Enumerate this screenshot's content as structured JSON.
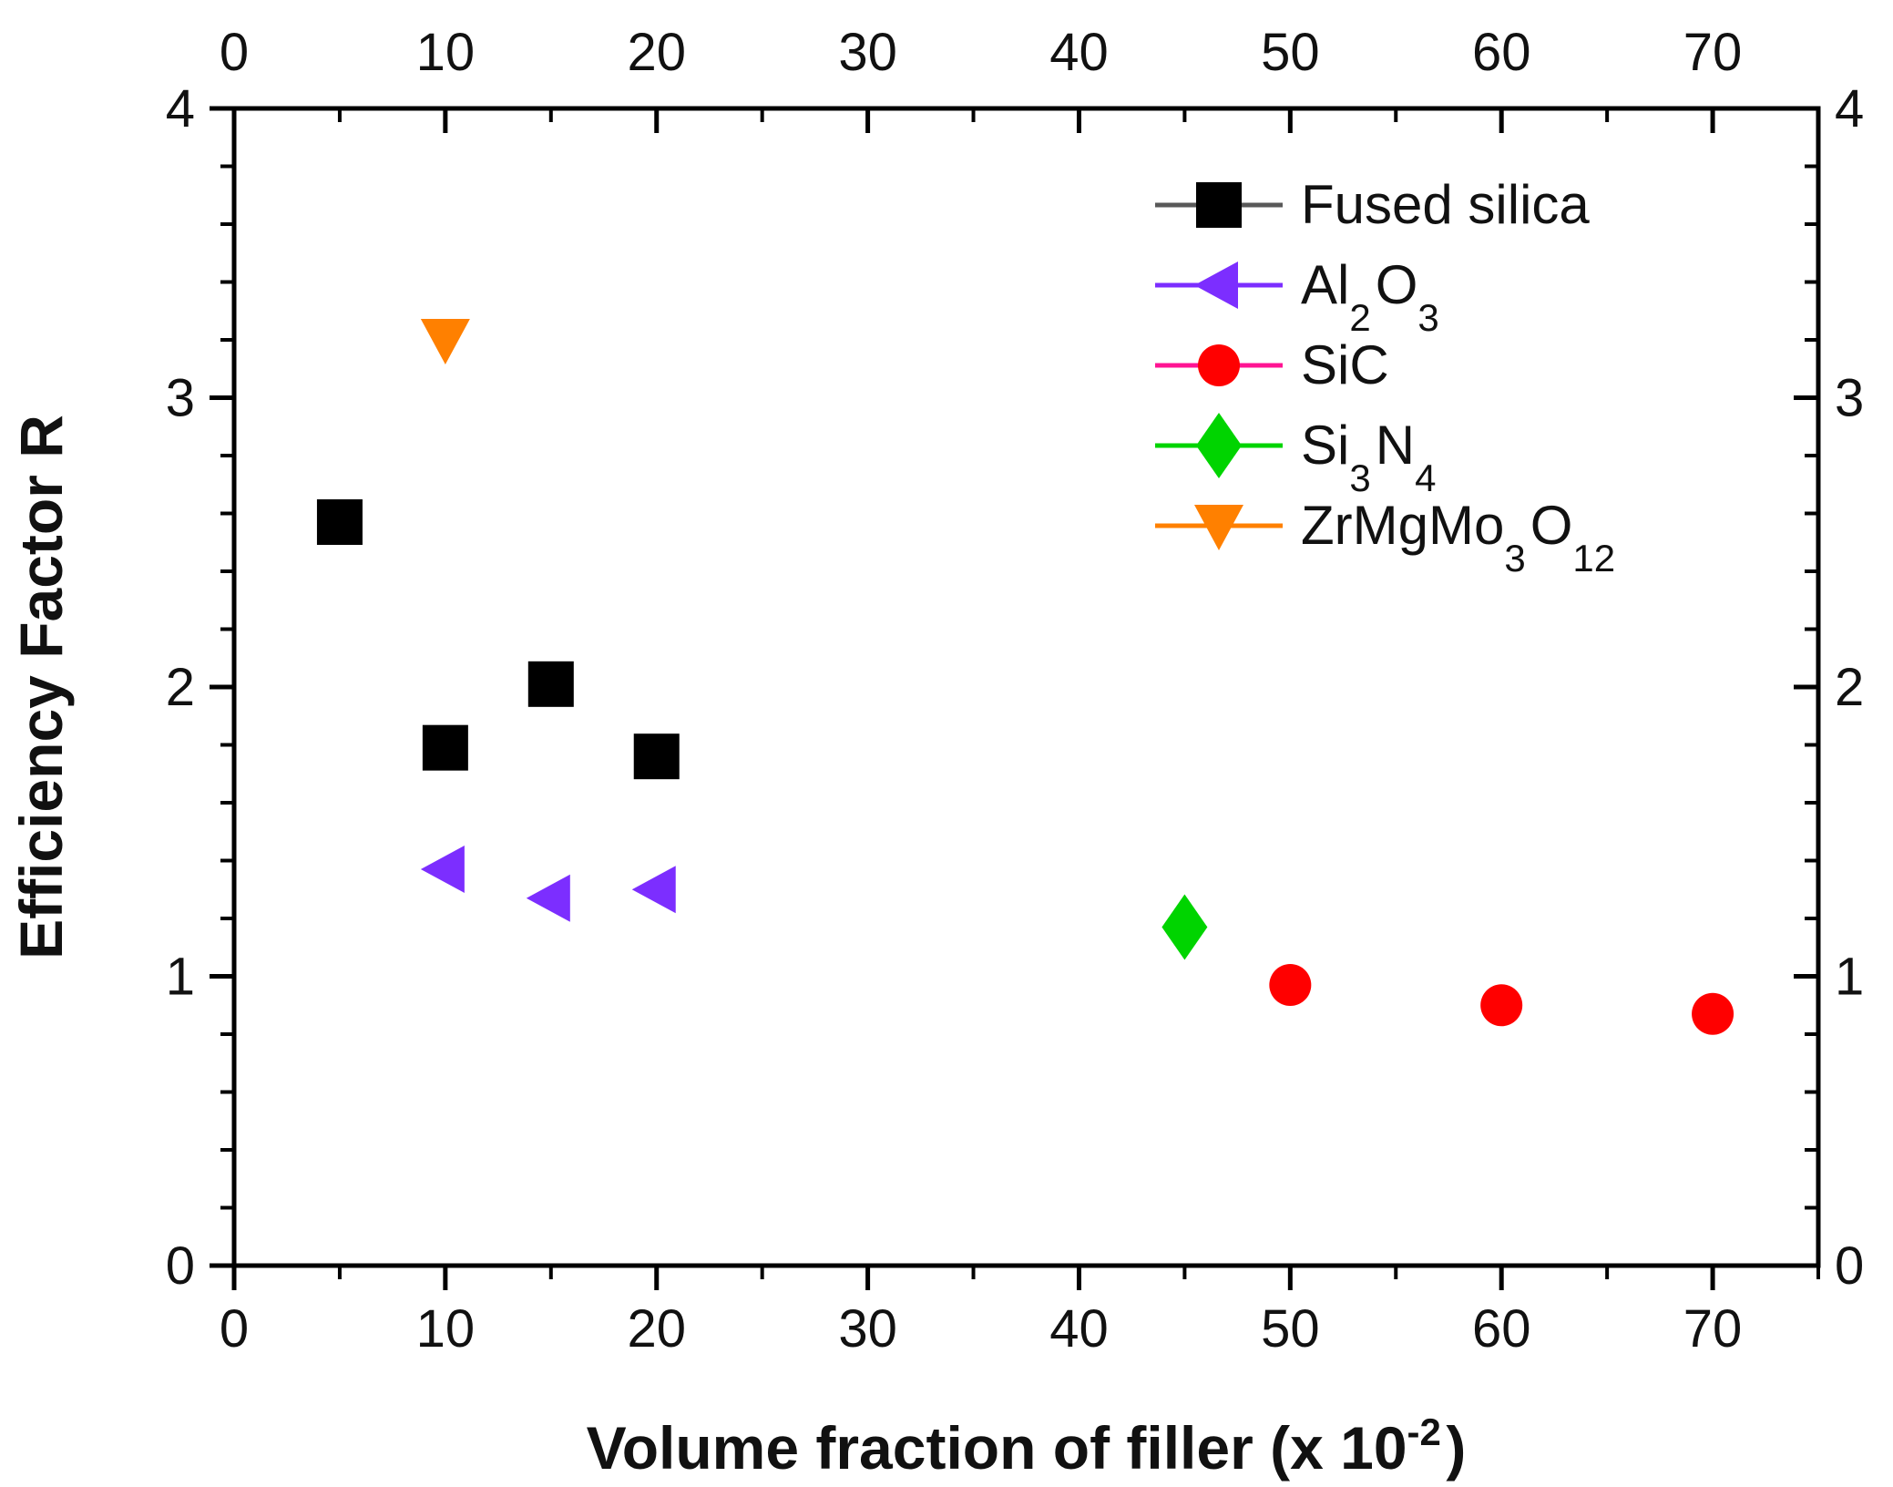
{
  "chart_data": {
    "type": "scatter",
    "title": "",
    "ylabel": "Efficiency Factor R",
    "xlabel_parts": [
      {
        "t": "Volume fraction of filler (x 10"
      },
      {
        "t": "-2",
        "sup": true
      },
      {
        "t": ")"
      }
    ],
    "xlim": [
      0,
      75
    ],
    "ylim": [
      0,
      4
    ],
    "x_major_ticks": [
      0,
      10,
      20,
      30,
      40,
      50,
      60,
      70
    ],
    "x_minor_step": 5,
    "y_major_ticks": [
      0,
      1,
      2,
      3,
      4
    ],
    "y_minor_step": 0.2,
    "grid": false,
    "axes_mirrored": true,
    "legend_position": "inside-upper-right",
    "colors": {
      "frame": "#000000",
      "tick_label": "#111111",
      "fused_silica": "#000000",
      "fused_silica_line": "#595959",
      "al2o3": "#7C2EFF",
      "sic_marker": "#FF0000",
      "sic_line": "#FF1493",
      "si3n4": "#00D400",
      "zrmgmo3o12": "#FF8000"
    },
    "series": [
      {
        "id": "fused-silica",
        "name_parts": [
          {
            "t": "Fused silica"
          }
        ],
        "marker": "square",
        "color": "#000000",
        "line_color": "#595959",
        "points": [
          [
            5,
            2.57
          ],
          [
            10,
            1.79
          ],
          [
            15,
            2.01
          ],
          [
            20,
            1.76
          ]
        ]
      },
      {
        "id": "al2o3",
        "name_parts": [
          {
            "t": "Al"
          },
          {
            "t": "2",
            "sub": true
          },
          {
            "t": "O"
          },
          {
            "t": "3",
            "sub": true
          }
        ],
        "marker": "triangle-left",
        "color": "#7C2EFF",
        "line_color": "#7C2EFF",
        "points": [
          [
            10,
            1.37
          ],
          [
            15,
            1.27
          ],
          [
            20,
            1.3
          ]
        ]
      },
      {
        "id": "sic",
        "name_parts": [
          {
            "t": "SiC"
          }
        ],
        "marker": "circle",
        "color": "#FF0000",
        "line_color": "#FF1493",
        "points": [
          [
            50,
            0.97
          ],
          [
            60,
            0.9
          ],
          [
            70,
            0.87
          ]
        ]
      },
      {
        "id": "si3n4",
        "name_parts": [
          {
            "t": "Si"
          },
          {
            "t": "3",
            "sub": true
          },
          {
            "t": "N"
          },
          {
            "t": "4",
            "sub": true
          }
        ],
        "marker": "diamond",
        "color": "#00D400",
        "line_color": "#00D400",
        "points": [
          [
            45,
            1.17
          ]
        ]
      },
      {
        "id": "zrmgmo3o12",
        "name_parts": [
          {
            "t": "ZrMgMo"
          },
          {
            "t": "3",
            "sub": true
          },
          {
            "t": "O"
          },
          {
            "t": "12",
            "sub": true
          }
        ],
        "marker": "triangle-down",
        "color": "#FF8000",
        "line_color": "#FF8000",
        "points": [
          [
            10,
            3.2
          ]
        ]
      }
    ]
  }
}
